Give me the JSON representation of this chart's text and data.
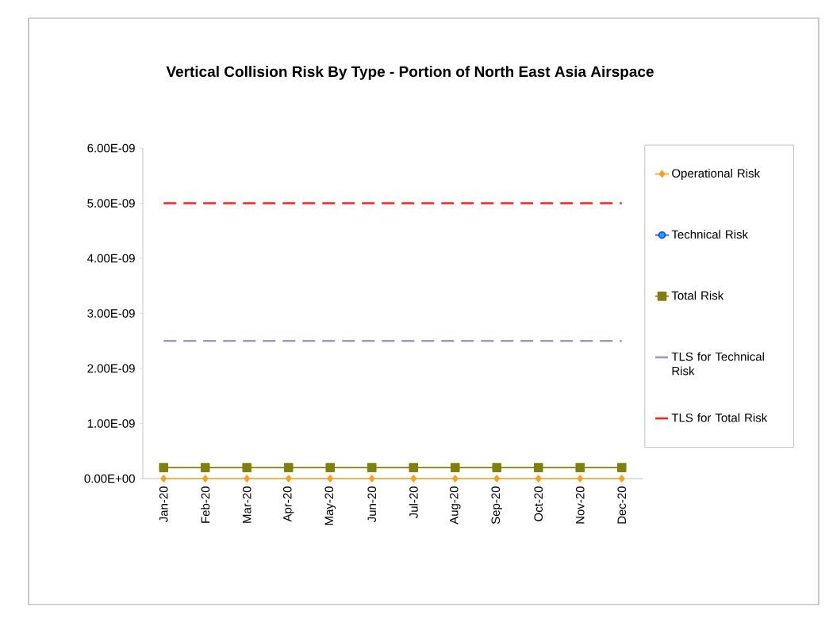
{
  "chart_data": {
    "type": "line",
    "title": "Vertical Collision Risk By Type  - Portion of North East Asia Airspace",
    "categories": [
      "Jan-20",
      "Feb-20",
      "Mar-20",
      "Apr-20",
      "May-20",
      "Jun-20",
      "Jul-20",
      "Aug-20",
      "Sep-20",
      "Oct-20",
      "Nov-20",
      "Dec-20"
    ],
    "series": [
      {
        "name": "Operational Risk",
        "color": "#ffa020",
        "marker": "diamond",
        "values": [
          0,
          0,
          0,
          0,
          0,
          0,
          0,
          0,
          0,
          0,
          0,
          0
        ]
      },
      {
        "name": "Technical Risk",
        "color": "#3333ff",
        "marker": "circle",
        "values": [
          null,
          null,
          null,
          null,
          null,
          null,
          null,
          null,
          null,
          null,
          null,
          null
        ]
      },
      {
        "name": "Total Risk",
        "color": "#808010",
        "marker": "square",
        "values": [
          2e-10,
          2e-10,
          2e-10,
          2e-10,
          2e-10,
          2e-10,
          2e-10,
          2e-10,
          2e-10,
          2e-10,
          2e-10,
          2e-10
        ]
      },
      {
        "name": "TLS for Technical Risk",
        "color": "#9999cc",
        "marker": "none",
        "line_style": "dashed",
        "values": [
          2.5e-09,
          2.5e-09,
          2.5e-09,
          2.5e-09,
          2.5e-09,
          2.5e-09,
          2.5e-09,
          2.5e-09,
          2.5e-09,
          2.5e-09,
          2.5e-09,
          2.5e-09
        ]
      },
      {
        "name": "TLS for Total Risk",
        "color": "#ff2020",
        "marker": "none",
        "line_style": "dashed",
        "values": [
          5e-09,
          5e-09,
          5e-09,
          5e-09,
          5e-09,
          5e-09,
          5e-09,
          5e-09,
          5e-09,
          5e-09,
          5e-09,
          5e-09
        ]
      }
    ],
    "ylim": [
      0,
      6e-09
    ],
    "yticks": [
      {
        "value": 0,
        "label": "0.00E+00"
      },
      {
        "value": 1e-09,
        "label": "1.00E-09"
      },
      {
        "value": 2e-09,
        "label": "2.00E-09"
      },
      {
        "value": 3e-09,
        "label": "3.00E-09"
      },
      {
        "value": 4e-09,
        "label": "4.00E-09"
      },
      {
        "value": 5e-09,
        "label": "5.00E-09"
      },
      {
        "value": 6e-09,
        "label": "6.00E-09"
      }
    ],
    "grid": false,
    "legend": "right"
  }
}
